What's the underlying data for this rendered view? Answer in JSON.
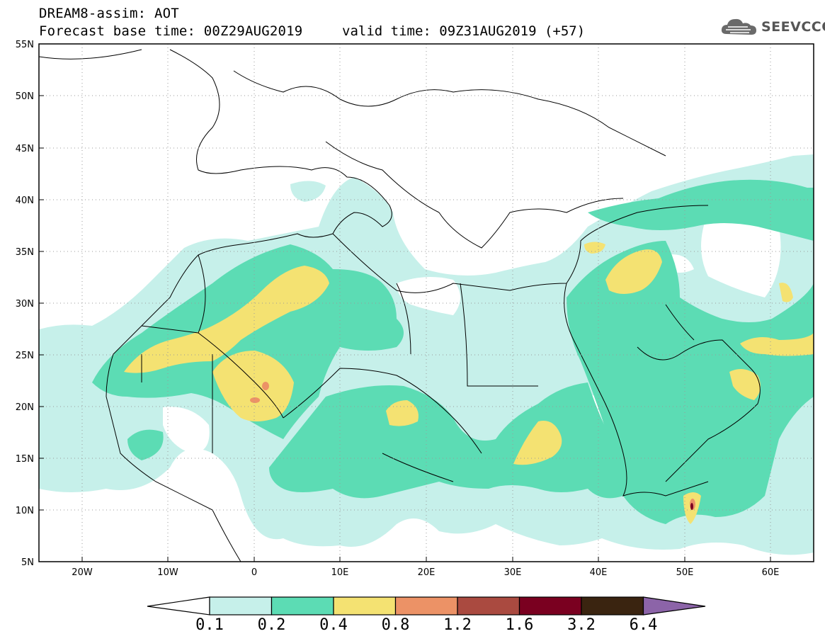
{
  "header": {
    "title_line1": "DREAM8-assim: AOT",
    "title_line2": "Forecast base time: 00Z29AUG2019",
    "valid_time": "valid time: 09Z31AUG2019 (+57)"
  },
  "logo": {
    "text": "SEEVCCC",
    "icon": "cloud-icon"
  },
  "map": {
    "lat_labels": [
      "55N",
      "50N",
      "45N",
      "40N",
      "35N",
      "30N",
      "25N",
      "20N",
      "15N",
      "10N",
      "5N"
    ],
    "lon_labels": [
      "20W",
      "10W",
      "0",
      "10E",
      "20E",
      "30E",
      "40E",
      "50E",
      "60E"
    ],
    "colors": {
      "bin_0.1_0.2": "#c6f0ea",
      "bin_0.2_0.4": "#5cdcb4",
      "bin_0.4_0.8": "#f4e272",
      "bin_0.8_1.2": "#ec9266",
      "bin_1.2_1.6": "#aa4a40",
      "bin_1.6_3.2": "#7a0020",
      "bin_3.2_6.4": "#3a2410",
      "bin_above_6.4": "#8c64a8"
    }
  },
  "colorbar": {
    "labels": [
      "0.1",
      "0.2",
      "0.4",
      "0.8",
      "1.2",
      "1.6",
      "3.2",
      "6.4"
    ],
    "colors": [
      "#ffffff",
      "#c6f0ea",
      "#5cdcb4",
      "#f4e272",
      "#ec9266",
      "#aa4a40",
      "#7a0020",
      "#3a2410",
      "#8c64a8"
    ]
  }
}
